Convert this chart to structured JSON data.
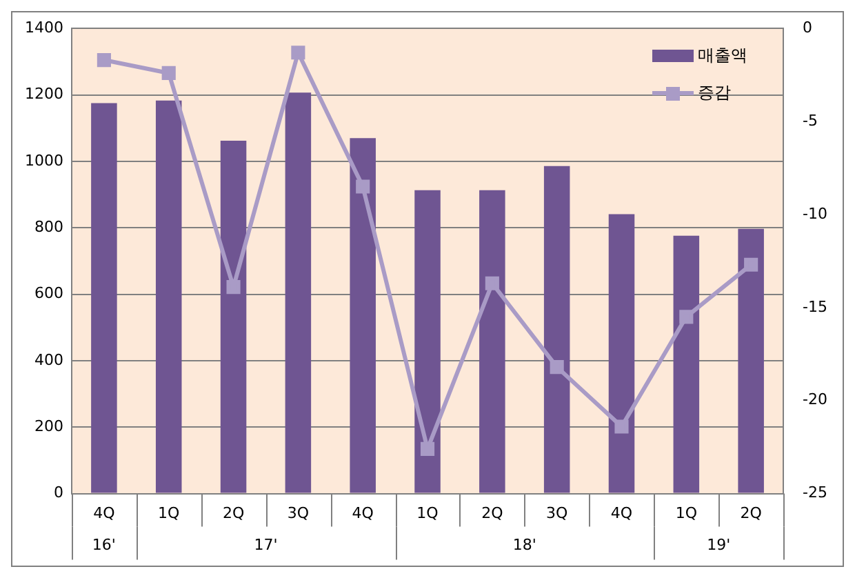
{
  "chart_data": {
    "type": "bar",
    "categories": [
      "4Q",
      "1Q",
      "2Q",
      "3Q",
      "4Q",
      "1Q",
      "2Q",
      "3Q",
      "4Q",
      "1Q",
      "2Q"
    ],
    "series": [
      {
        "name": "매출액",
        "color": "#6f5592",
        "values": [
          1175,
          1183,
          1062,
          1207,
          1070,
          913,
          913,
          986,
          841,
          776,
          797
        ]
      },
      {
        "name": "증감",
        "type": "line",
        "axis": "y2",
        "color": "#a99bc6",
        "values": [
          -1.7,
          -2.4,
          -13.9,
          -1.3,
          -8.5,
          -22.6,
          -13.7,
          -18.2,
          -21.4,
          -15.5,
          -12.7
        ]
      }
    ],
    "ylim": [
      0,
      1400
    ],
    "yticks": [
      0,
      200,
      400,
      600,
      800,
      1000,
      1200,
      1400
    ],
    "y2lim": [
      -25,
      0
    ],
    "y2ticks": [
      -25,
      -20,
      -15,
      -10,
      -5,
      0
    ],
    "annotations": [
      "16'",
      "17'",
      "18'",
      "19'"
    ],
    "grid": "y",
    "legend": "top right",
    "marker": "square",
    "line_style": "solid"
  }
}
